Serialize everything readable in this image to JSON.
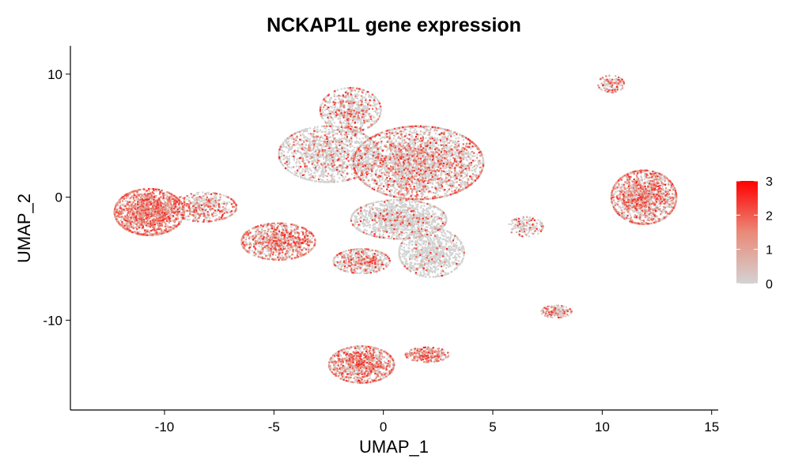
{
  "chart_data": {
    "type": "scatter",
    "title": "NCKAP1L gene expression",
    "xlabel": "UMAP_1",
    "ylabel": "UMAP_2",
    "xlim": [
      -14.3,
      15.3
    ],
    "ylim": [
      -17.3,
      12.3
    ],
    "x_ticks": [
      -10,
      -5,
      0,
      5,
      10,
      15
    ],
    "x_tick_labels": [
      "-10",
      "-5",
      "0",
      "5",
      "10",
      "15"
    ],
    "y_ticks": [
      -10,
      0,
      10
    ],
    "y_tick_labels": [
      "-10",
      "0",
      "10"
    ],
    "grid": false,
    "legend": {
      "placement": "right",
      "kind": "colorbar",
      "range": [
        0,
        3
      ],
      "ticks": [
        0,
        1,
        2,
        3
      ],
      "tick_labels": [
        "0",
        "1",
        "2",
        "3"
      ]
    },
    "colors": {
      "low": "#d3d3d3",
      "high": "#ff0000"
    },
    "clusters": [
      {
        "cx": -10.7,
        "cy": -1.2,
        "rx": 1.6,
        "ry": 1.9,
        "n": 1500,
        "expr": 0.75
      },
      {
        "cx": -8.2,
        "cy": -0.8,
        "rx": 1.5,
        "ry": 1.2,
        "n": 500,
        "expr": 0.45
      },
      {
        "cx": -4.8,
        "cy": -3.6,
        "rx": 1.7,
        "ry": 1.5,
        "n": 900,
        "expr": 0.55
      },
      {
        "cx": -1.5,
        "cy": 7.1,
        "rx": 1.4,
        "ry": 1.8,
        "n": 700,
        "expr": 0.3
      },
      {
        "cx": -2.5,
        "cy": 3.5,
        "rx": 2.3,
        "ry": 2.3,
        "n": 1400,
        "expr": 0.18
      },
      {
        "cx": 1.6,
        "cy": 2.8,
        "rx": 3.0,
        "ry": 3.0,
        "n": 3200,
        "expr": 0.3
      },
      {
        "cx": 0.7,
        "cy": -1.8,
        "rx": 2.2,
        "ry": 1.6,
        "n": 1300,
        "expr": 0.1
      },
      {
        "cx": 2.2,
        "cy": -4.5,
        "rx": 1.5,
        "ry": 2.0,
        "n": 900,
        "expr": 0.06
      },
      {
        "cx": -1.0,
        "cy": -5.2,
        "rx": 1.3,
        "ry": 1.0,
        "n": 500,
        "expr": 0.35
      },
      {
        "cx": -1.0,
        "cy": -13.6,
        "rx": 1.5,
        "ry": 1.5,
        "n": 1000,
        "expr": 0.55
      },
      {
        "cx": 2.0,
        "cy": -12.8,
        "rx": 1.0,
        "ry": 0.6,
        "n": 250,
        "expr": 0.7
      },
      {
        "cx": 11.9,
        "cy": 0.0,
        "rx": 1.5,
        "ry": 2.2,
        "n": 1500,
        "expr": 0.5
      },
      {
        "cx": 10.4,
        "cy": 9.2,
        "rx": 0.6,
        "ry": 0.7,
        "n": 150,
        "expr": 0.4
      },
      {
        "cx": 6.5,
        "cy": -2.4,
        "rx": 0.8,
        "ry": 0.8,
        "n": 150,
        "expr": 0.35
      },
      {
        "cx": 7.9,
        "cy": -9.3,
        "rx": 0.7,
        "ry": 0.5,
        "n": 150,
        "expr": 0.45
      }
    ]
  }
}
